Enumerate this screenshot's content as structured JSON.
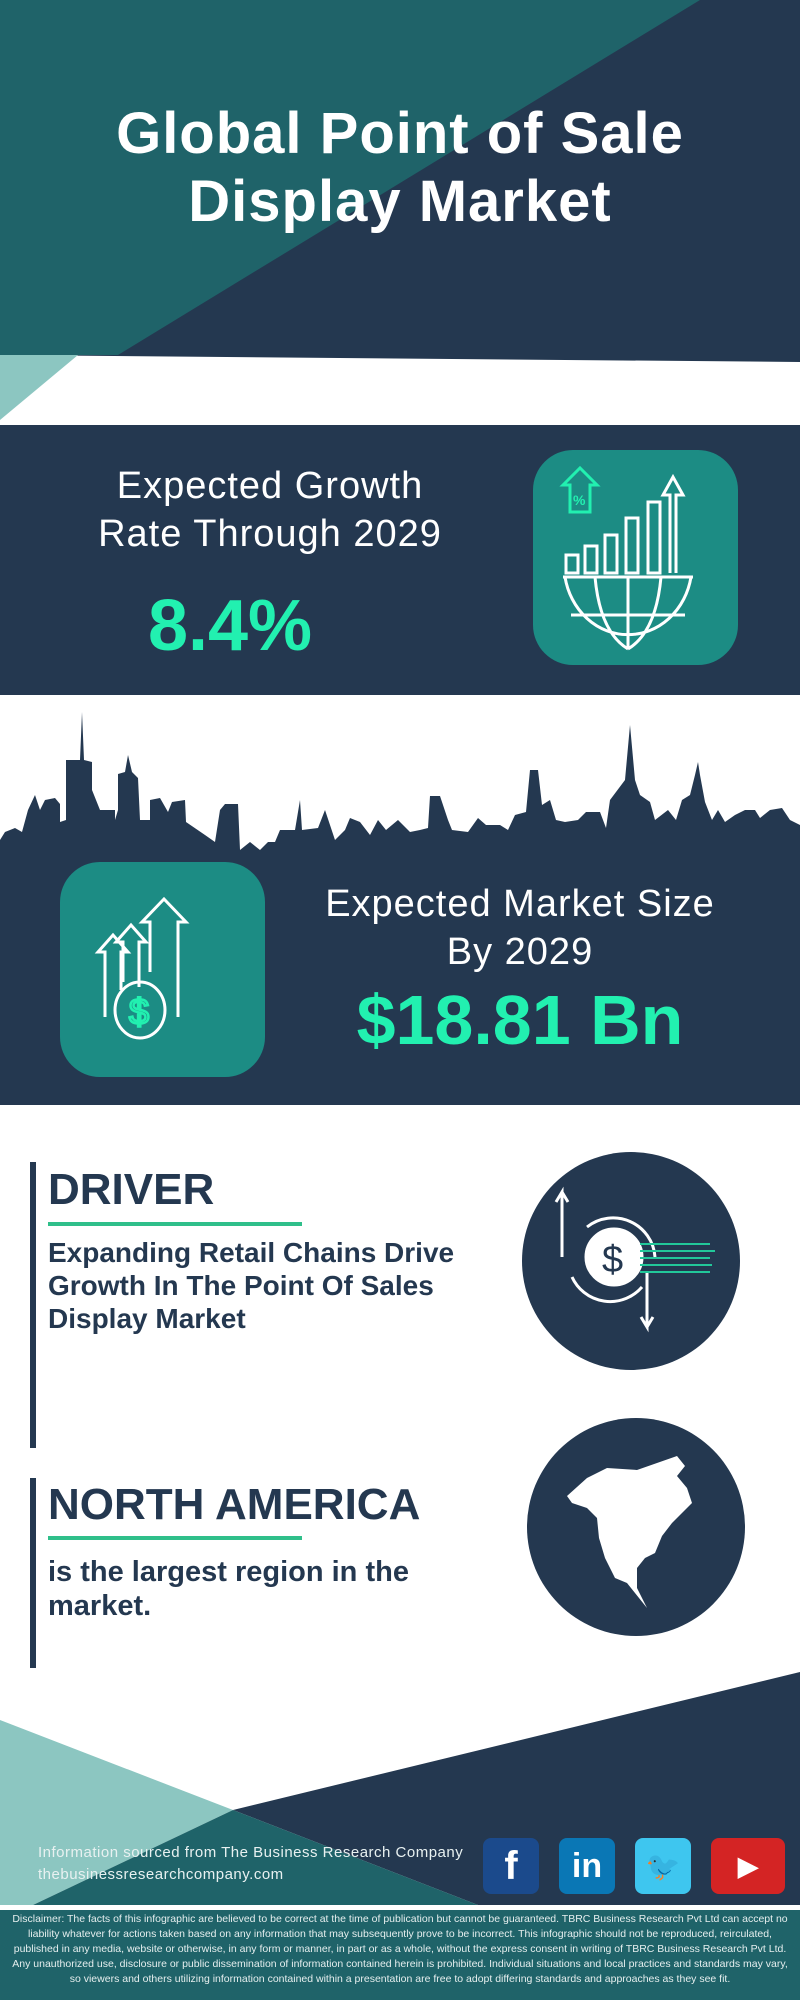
{
  "header": {
    "title_line1": "Global Point of Sale",
    "title_line2": "Display Market"
  },
  "growth": {
    "label_line1": "Expected Growth",
    "label_line2": "Rate Through 2029",
    "value": "8.4%",
    "icon": "chart-globe-icon"
  },
  "market": {
    "label_line1": "Expected Market Size",
    "label_line2": "By 2029",
    "value": "$18.81 Bn",
    "icon": "money-growth-icon"
  },
  "driver": {
    "heading": "DRIVER",
    "text": "Expanding Retail Chains Drive Growth In The Point Of Sales Display Market",
    "icon": "dollar-exchange-icon"
  },
  "region": {
    "heading": "NORTH AMERICA",
    "text": "is the largest region in the market.",
    "icon": "north-america-map-icon"
  },
  "footer": {
    "source": "Information sourced from The Business Research Company",
    "url": "thebusinessresearchcompany.com",
    "social": [
      {
        "name": "facebook",
        "glyph": "f",
        "color": "#1b4a8c"
      },
      {
        "name": "linkedin",
        "glyph": "in",
        "color": "#0a77b5"
      },
      {
        "name": "twitter",
        "glyph": "🐦",
        "color": "#3ec6ef"
      },
      {
        "name": "youtube",
        "glyph": "▶",
        "color": "#d42424"
      }
    ],
    "disclaimer": "Disclaimer: The facts of this infographic are believed to be correct at the time of publication but cannot be guaranteed. TBRC Business Research Pvt Ltd can accept no liability whatever for actions taken based on any information that may subsequently prove to be incorrect. This infographic should not be reproduced, reirculated, published in any media, website or otherwise, in any form or manner, in part or as a whole, without the express consent in writing of TBRC Business Research Pvt Ltd. Any unauthorized use, disclosure or public dissemination of information contained herein is prohibited. Individual situations and local practices and standards may vary, so viewers and others utilizing information contained within a presentation are free to adopt differing standards and approaches as they see fit."
  },
  "colors": {
    "navy": "#243850",
    "teal": "#1f6369",
    "light_teal": "#8cc6c1",
    "accent": "#22f0b0",
    "icon_bg": "#1c8c84"
  }
}
